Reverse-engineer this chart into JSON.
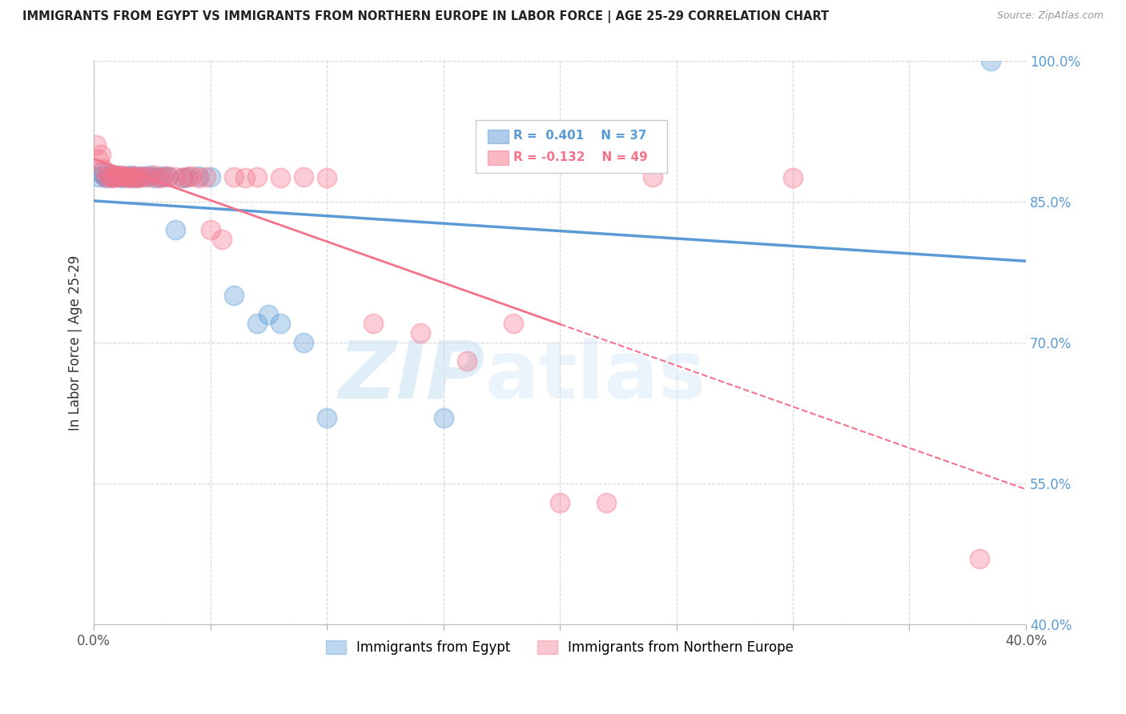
{
  "title": "IMMIGRANTS FROM EGYPT VS IMMIGRANTS FROM NORTHERN EUROPE IN LABOR FORCE | AGE 25-29 CORRELATION CHART",
  "source": "Source: ZipAtlas.com",
  "ylabel": "In Labor Force | Age 25-29",
  "legend_labels": [
    "Immigrants from Egypt",
    "Immigrants from Northern Europe"
  ],
  "R_egypt": 0.401,
  "N_egypt": 37,
  "R_north_europe": -0.132,
  "N_north_europe": 49,
  "xlim": [
    0.0,
    0.4
  ],
  "ylim": [
    0.4,
    1.0
  ],
  "xticks": [
    0.0,
    0.05,
    0.1,
    0.15,
    0.2,
    0.25,
    0.3,
    0.35,
    0.4
  ],
  "yticks": [
    0.4,
    0.55,
    0.7,
    0.85,
    1.0
  ],
  "ytick_labels": [
    "40.0%",
    "55.0%",
    "70.0%",
    "85.0%",
    "100.0%"
  ],
  "xtick_labels": [
    "0.0%",
    "",
    "",
    "",
    "",
    "",
    "",
    "",
    "40.0%"
  ],
  "color_egypt": "#5B9BD5",
  "color_north_europe": "#F4728A",
  "background_color": "#FFFFFF",
  "egypt_x": [
    0.002,
    0.003,
    0.004,
    0.005,
    0.006,
    0.007,
    0.008,
    0.009,
    0.01,
    0.011,
    0.012,
    0.013,
    0.014,
    0.015,
    0.016,
    0.017,
    0.018,
    0.02,
    0.022,
    0.024,
    0.026,
    0.028,
    0.03,
    0.032,
    0.035,
    0.038,
    0.04,
    0.045,
    0.05,
    0.06,
    0.07,
    0.075,
    0.08,
    0.09,
    0.1,
    0.15,
    0.385
  ],
  "egypt_y": [
    0.876,
    0.88,
    0.878,
    0.875,
    0.877,
    0.876,
    0.879,
    0.876,
    0.878,
    0.877,
    0.875,
    0.876,
    0.877,
    0.876,
    0.878,
    0.875,
    0.876,
    0.877,
    0.876,
    0.878,
    0.875,
    0.876,
    0.877,
    0.876,
    0.82,
    0.875,
    0.876,
    0.877,
    0.876,
    0.75,
    0.72,
    0.73,
    0.72,
    0.7,
    0.62,
    0.62,
    1.0
  ],
  "north_europe_x": [
    0.001,
    0.002,
    0.003,
    0.004,
    0.005,
    0.006,
    0.007,
    0.008,
    0.009,
    0.01,
    0.011,
    0.012,
    0.013,
    0.014,
    0.015,
    0.016,
    0.017,
    0.018,
    0.019,
    0.02,
    0.022,
    0.024,
    0.026,
    0.028,
    0.03,
    0.032,
    0.035,
    0.038,
    0.04,
    0.042,
    0.045,
    0.048,
    0.05,
    0.055,
    0.06,
    0.065,
    0.07,
    0.08,
    0.09,
    0.1,
    0.12,
    0.14,
    0.16,
    0.18,
    0.2,
    0.22,
    0.24,
    0.3,
    0.38
  ],
  "north_europe_y": [
    0.91,
    0.895,
    0.9,
    0.885,
    0.876,
    0.878,
    0.876,
    0.875,
    0.876,
    0.877,
    0.876,
    0.878,
    0.877,
    0.876,
    0.875,
    0.876,
    0.877,
    0.876,
    0.875,
    0.876,
    0.877,
    0.876,
    0.878,
    0.875,
    0.876,
    0.877,
    0.876,
    0.875,
    0.876,
    0.877,
    0.875,
    0.876,
    0.82,
    0.81,
    0.876,
    0.875,
    0.876,
    0.875,
    0.876,
    0.875,
    0.72,
    0.71,
    0.68,
    0.72,
    0.53,
    0.53,
    0.876,
    0.875,
    0.47
  ],
  "ne_trendline_solid_end": 0.2,
  "ne_trendline_dashed_end": 0.4
}
